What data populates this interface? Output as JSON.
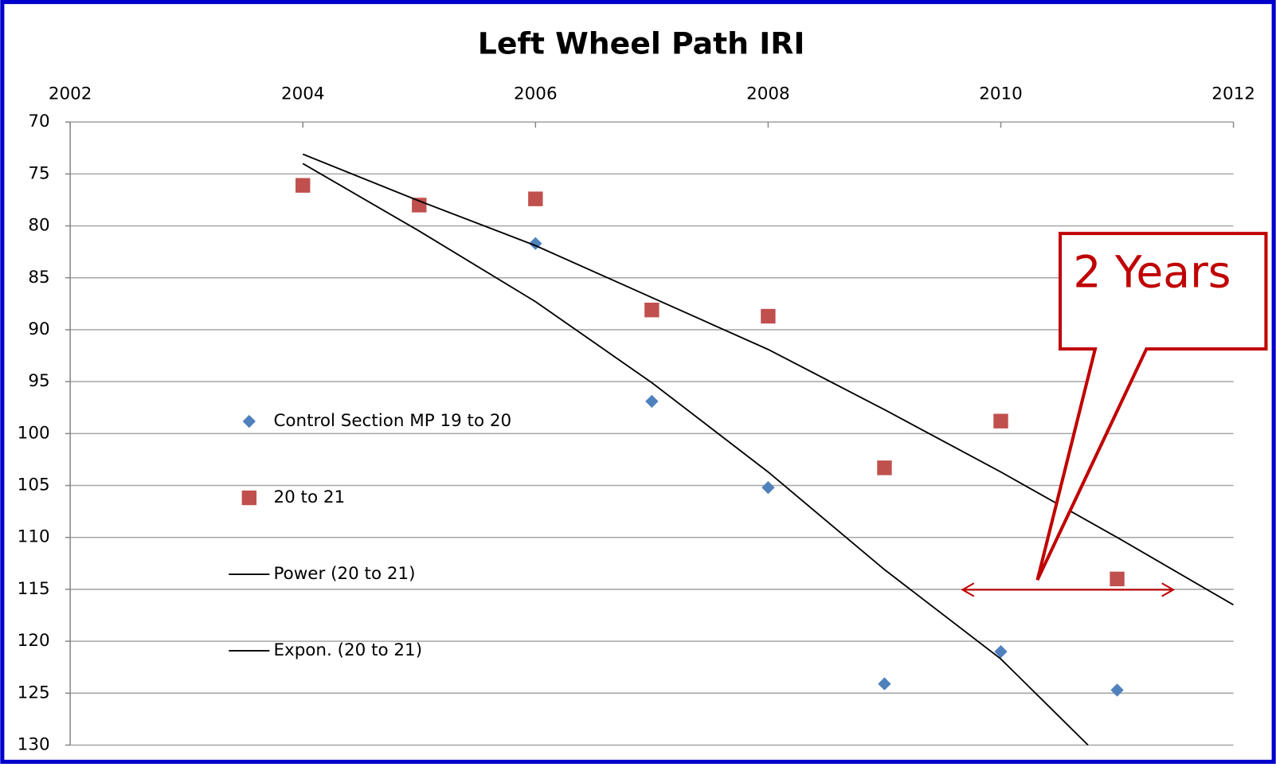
{
  "chart_data": {
    "type": "scatter",
    "title": "Left Wheel Path IRI",
    "xlim": [
      2002,
      2012
    ],
    "xticks": [
      2002,
      2004,
      2006,
      2008,
      2010,
      2012
    ],
    "ylim": [
      70,
      130
    ],
    "yticks": [
      70,
      75,
      80,
      85,
      90,
      95,
      100,
      105,
      110,
      115,
      120,
      125,
      130
    ],
    "y_inverted": true,
    "x_axis_position": "top",
    "grid": true,
    "legend": "left",
    "series": [
      {
        "name": "Control Section MP 19 to 20",
        "type": "scatter",
        "marker": "diamond",
        "color": "#4f81bd",
        "x": [
          2006,
          2007,
          2008,
          2009,
          2010,
          2011
        ],
        "values": [
          81.7,
          96.9,
          105.2,
          124.1,
          121.0,
          124.7
        ]
      },
      {
        "name": "20 to 21",
        "type": "scatter",
        "marker": "square",
        "color": "#c0504d",
        "x": [
          2004,
          2005,
          2006,
          2007,
          2008,
          2009,
          2010,
          2011
        ],
        "values": [
          76.1,
          78.0,
          77.4,
          88.1,
          88.7,
          103.3,
          98.8,
          114.0
        ]
      },
      {
        "name": "Power (20 to 21)",
        "type": "line",
        "color": "#000000",
        "x": [
          2004,
          2005,
          2006,
          2007,
          2008,
          2009,
          2010,
          2011,
          2012
        ],
        "values": [
          73.1,
          77.6,
          81.9,
          86.9,
          91.9,
          97.7,
          103.7,
          110.0,
          116.5
        ]
      },
      {
        "name": "Expon. (20 to 21)",
        "type": "line",
        "color": "#000000",
        "x": [
          2004,
          2005,
          2006,
          2007,
          2008,
          2009,
          2010,
          2010.75
        ],
        "values": [
          74.0,
          80.5,
          87.3,
          95.1,
          103.7,
          113.1,
          121.7,
          130
        ]
      }
    ],
    "annotation": "2 Years"
  }
}
